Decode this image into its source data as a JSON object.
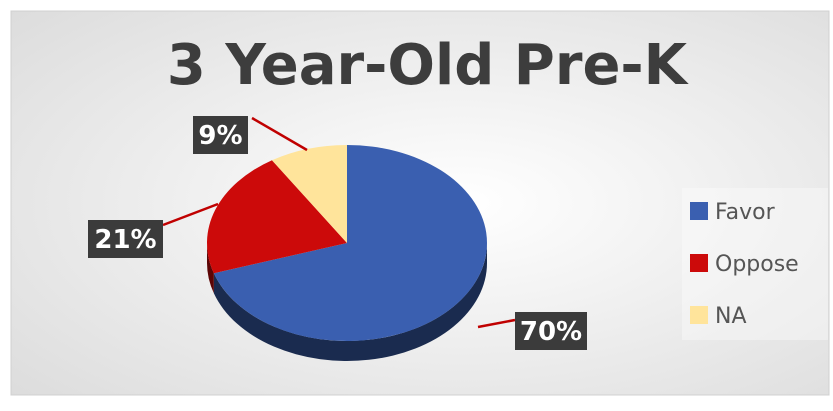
{
  "chart_data": {
    "type": "pie",
    "title": "3 Year-Old Pre-K",
    "slices": [
      {
        "label": "Favor",
        "value": 70,
        "display": "70%",
        "color": "#3a5fb0"
      },
      {
        "label": "Oppose",
        "value": 21,
        "display": "21%",
        "color": "#cc0a0a"
      },
      {
        "label": "NA",
        "value": 9,
        "display": "9%",
        "color": "#ffe49b"
      }
    ],
    "legend_position": "right",
    "label_style": "dark-callout",
    "style": "3d"
  },
  "colors": {
    "label_box": "#3b3b3b",
    "label_text": "#ffffff",
    "leader_line": "#c00000",
    "title": "#3d3d3d",
    "legend_text": "#555555"
  }
}
